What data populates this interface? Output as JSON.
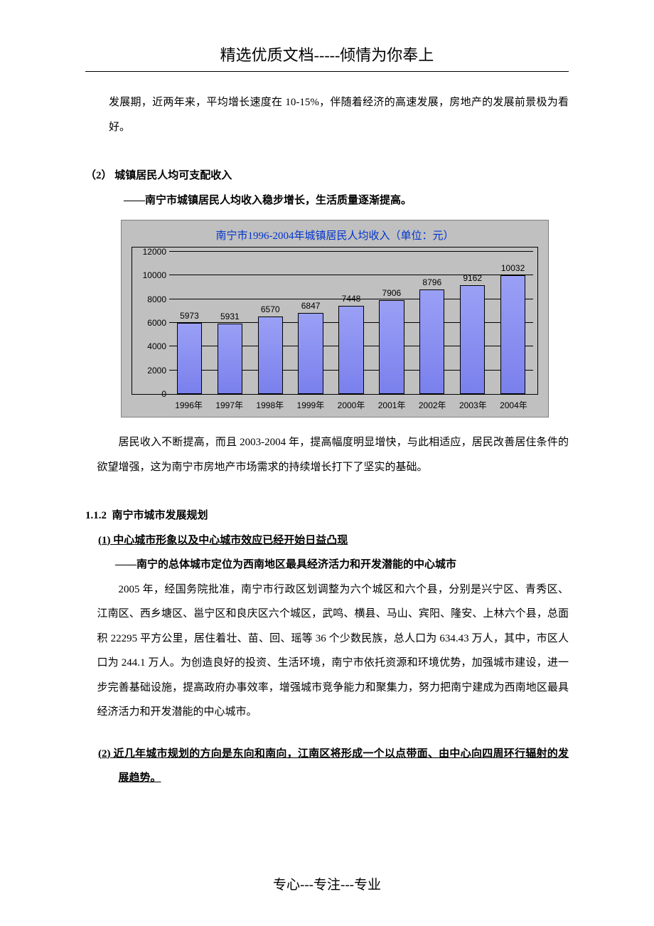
{
  "header": {
    "title": "精选优质文档-----倾情为你奉上"
  },
  "para_intro": "发展期，近两年来，平均增长速度在 10-15%，伴随着经济的高速发展，房地产的发展前景极为看好。",
  "sec2": {
    "heading": "（2） 城镇居民人均可支配收入",
    "sub": "——南宁市城镇居民人均收入稳步增长，生活质量逐渐提高。"
  },
  "chart": {
    "type": "bar",
    "title": "南宁市1996-2004年城镇居民人均收入（单位：元）",
    "title_color": "#0033cc",
    "title_fontsize": 15,
    "categories": [
      "1996年",
      "1997年",
      "1998年",
      "1999年",
      "2000年",
      "2001年",
      "2002年",
      "2003年",
      "2004年"
    ],
    "values": [
      5973,
      5931,
      6570,
      6847,
      7448,
      7906,
      8796,
      9162,
      10032
    ],
    "bar_fill_top": "#9aa0f5",
    "bar_fill_bottom": "#7a80ec",
    "bar_border": "#000000",
    "plot_bg": "#c0c0c0",
    "panel_bg": "#c0c0c0",
    "panel_border": "#7f7f7f",
    "grid_color": "#000000",
    "axis_color": "#000000",
    "ylim": [
      0,
      12000
    ],
    "ytick_step": 2000,
    "yticks": [
      0,
      2000,
      4000,
      6000,
      8000,
      10000,
      12000
    ],
    "tick_fontsize": 12,
    "value_label_fontsize": 12,
    "bar_width_ratio": 0.62
  },
  "para_after_chart": "居民收入不断提高，而且 2003-2004 年，提高幅度明显增快，与此相适应，居民改善居住条件的欲望增强，这为南宁市房地产市场需求的持续增长打下了坚实的基础。",
  "sec112": {
    "num": "1.1.2",
    "title": "南宁市城市发展规划"
  },
  "item1": {
    "heading": "(1) 中心城市形象以及中心城市效应已经开始日益凸现",
    "sub": "——南宁的总体城市定位为西南地区最具经济活力和开发潜能的中心城市",
    "body": "2005 年，经国务院批准，南宁市行政区划调整为六个城区和六个县，分别是兴宁区、青秀区、江南区、西乡塘区、邕宁区和良庆区六个城区，武鸣、横县、马山、宾阳、隆安、上林六个县，总面积 22295 平方公里，居住着壮、苗、回、瑶等 36 个少数民族，总人口为 634.43 万人，其中，市区人口为 244.1 万人。为创造良好的投资、生活环境，南宁市依托资源和环境优势，加强城市建设，进一步完善基础设施，提高政府办事效率，增强城市竞争能力和聚集力，努力把南宁建成为西南地区最具经济活力和开发潜能的中心城市。"
  },
  "item2": {
    "heading": "(2) 近几年城市规划的方向是东向和南向，江南区将形成一个以点带面、由中心向四周环行辐射的发展趋势。"
  },
  "footer": {
    "text": "专心---专注---专业"
  }
}
